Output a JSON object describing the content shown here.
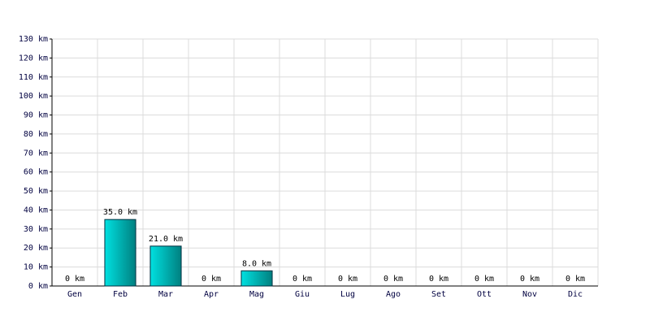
{
  "chart_data": {
    "type": "bar",
    "categories": [
      "Gen",
      "Feb",
      "Mar",
      "Apr",
      "Mag",
      "Giu",
      "Lug",
      "Ago",
      "Set",
      "Ott",
      "Nov",
      "Dic"
    ],
    "values": [
      0,
      35,
      21,
      0,
      8,
      0,
      0,
      0,
      0,
      0,
      0,
      0
    ],
    "value_labels": [
      "0 km",
      "35.0 km",
      "21.0 km",
      "0 km",
      "8.0 km",
      "0 km",
      "0 km",
      "0 km",
      "0 km",
      "0 km",
      "0 km",
      "0 km"
    ],
    "color": "#00e0e0",
    "ylim": [
      0,
      130
    ],
    "yticks": [
      {
        "value": 0,
        "label": "0 km"
      },
      {
        "value": 10,
        "label": "10 km"
      },
      {
        "value": 20,
        "label": "20 km"
      },
      {
        "value": 30,
        "label": "30 km"
      },
      {
        "value": 40,
        "label": "40 km"
      },
      {
        "value": 50,
        "label": "50 km"
      },
      {
        "value": 60,
        "label": "60 km"
      },
      {
        "value": 70,
        "label": "70 km"
      },
      {
        "value": 80,
        "label": "80 km"
      },
      {
        "value": 90,
        "label": "90 km"
      },
      {
        "value": 100,
        "label": "100 km"
      },
      {
        "value": 110,
        "label": "110 km"
      },
      {
        "value": 120,
        "label": "120 km"
      },
      {
        "value": 130,
        "label": "130 km"
      }
    ],
    "grid": true
  }
}
